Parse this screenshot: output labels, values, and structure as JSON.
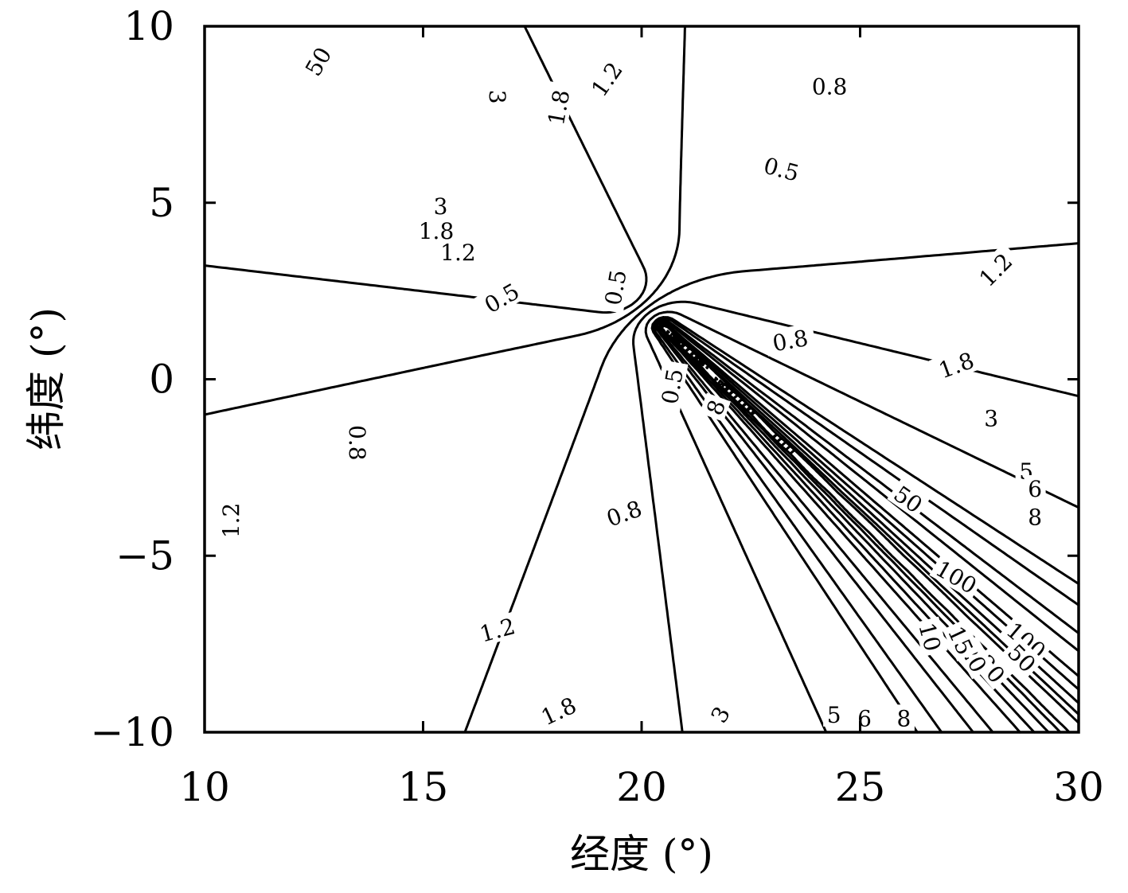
{
  "chart_data": {
    "type": "contour",
    "title": "",
    "xlabel": "经度 (°)",
    "ylabel": "纬度 (°)",
    "xlim": [
      10,
      30
    ],
    "ylim": [
      -10,
      10
    ],
    "x_ticks": [
      10,
      15,
      20,
      25,
      30
    ],
    "y_ticks": [
      -10,
      -5,
      0,
      5,
      10
    ],
    "x_tick_labels": [
      "10",
      "15",
      "20",
      "25",
      "30"
    ],
    "y_tick_labels": [
      "−10",
      "−5",
      "0",
      "5",
      "10"
    ],
    "grid": false,
    "legend": "none",
    "line_color": "#000000",
    "field": {
      "description_source": "two oppositely oriented line segments",
      "segment_a": [
        [
          10.0,
          10.0
        ],
        [
          19.5,
          2.5
        ]
      ],
      "segment_b": [
        [
          20.5,
          1.5
        ],
        [
          30.0,
          -10.0
        ]
      ]
    },
    "contour_levels": [
      0.5,
      0.8,
      1.2,
      1.8,
      3,
      5,
      6,
      8,
      10,
      15,
      20,
      30,
      50,
      100
    ],
    "contour_labels": [
      {
        "text": "0.8",
        "x": 24.3,
        "y": 8.3,
        "rot": 0
      },
      {
        "text": "0.5",
        "x": 23.2,
        "y": 5.95,
        "rot": 15
      },
      {
        "text": "1.2",
        "x": 19.2,
        "y": 8.5,
        "rot": -55
      },
      {
        "text": "1.8",
        "x": 18.1,
        "y": 7.7,
        "rot": -80
      },
      {
        "text": "3",
        "x": 16.7,
        "y": 8.0,
        "rot": 90
      },
      {
        "text": "1.2",
        "x": 28.1,
        "y": 3.1,
        "rot": -45
      },
      {
        "text": "0.8",
        "x": 23.4,
        "y": 1.1,
        "rot": -10
      },
      {
        "text": "1.8",
        "x": 27.2,
        "y": 0.4,
        "rot": -20
      },
      {
        "text": "3",
        "x": 28.0,
        "y": -1.1,
        "rot": 0
      },
      {
        "text": "5",
        "x": 28.8,
        "y": -2.6,
        "rot": 0
      },
      {
        "text": "6",
        "x": 29.0,
        "y": -3.1,
        "rot": 0
      },
      {
        "text": "8",
        "x": 29.0,
        "y": -3.9,
        "rot": 0
      },
      {
        "text": "100",
        "x": 27.2,
        "y": -5.6,
        "rot": 30
      },
      {
        "text": "100",
        "x": 28.8,
        "y": -7.4,
        "rot": 40
      },
      {
        "text": "50",
        "x": 28.7,
        "y": -7.9,
        "rot": 45
      },
      {
        "text": "30",
        "x": 28.0,
        "y": -8.2,
        "rot": 50
      },
      {
        "text": "20",
        "x": 27.6,
        "y": -7.9,
        "rot": 60
      },
      {
        "text": "15",
        "x": 27.3,
        "y": -7.4,
        "rot": 65
      },
      {
        "text": "10",
        "x": 26.6,
        "y": -7.3,
        "rot": 75
      },
      {
        "text": "8",
        "x": 26.0,
        "y": -9.6,
        "rot": 0
      },
      {
        "text": "6",
        "x": 25.1,
        "y": -9.6,
        "rot": 0
      },
      {
        "text": "5",
        "x": 24.4,
        "y": -9.5,
        "rot": 0
      },
      {
        "text": "3",
        "x": 21.8,
        "y": -9.5,
        "rot": -60
      },
      {
        "text": "1.8",
        "x": 18.1,
        "y": -9.4,
        "rot": -25
      },
      {
        "text": "1.2",
        "x": 16.7,
        "y": -7.1,
        "rot": -15
      },
      {
        "text": "0.8",
        "x": 19.6,
        "y": -3.8,
        "rot": -20
      },
      {
        "text": "0.8",
        "x": 13.5,
        "y": -1.8,
        "rot": 90
      },
      {
        "text": "1.2",
        "x": 10.6,
        "y": -4.0,
        "rot": -90
      },
      {
        "text": "0.5",
        "x": 16.8,
        "y": 2.3,
        "rot": -30
      },
      {
        "text": "1.2",
        "x": 15.8,
        "y": 3.6,
        "rot": 0
      },
      {
        "text": "1.8",
        "x": 15.3,
        "y": 4.2,
        "rot": 0
      },
      {
        "text": "3",
        "x": 15.4,
        "y": 4.9,
        "rot": 0
      },
      {
        "text": "0.5",
        "x": 20.7,
        "y": -0.2,
        "rot": -80
      },
      {
        "text": "8",
        "x": 21.7,
        "y": -0.8,
        "rot": -70
      },
      {
        "text": "50",
        "x": 26.1,
        "y": -3.4,
        "rot": 35
      },
      {
        "text": "50",
        "x": 12.6,
        "y": 9.0,
        "rot": -60
      },
      {
        "text": "0.5",
        "x": 19.4,
        "y": 2.6,
        "rot": -80
      }
    ]
  }
}
